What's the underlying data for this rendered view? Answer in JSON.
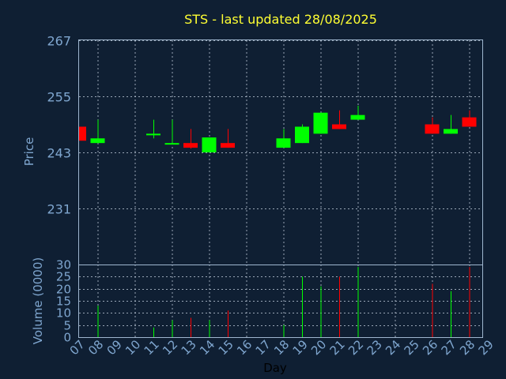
{
  "chart_data": {
    "type": "candlestick",
    "title": "STS - last updated 28/08/2025",
    "xlabel": "Day",
    "price_panel": {
      "ylabel": "Price",
      "ylim": [
        219,
        267
      ],
      "yticks": [
        231,
        243,
        255,
        267
      ],
      "grid": true
    },
    "volume_panel": {
      "ylabel": "Volume (0000)",
      "ylim": [
        0,
        30
      ],
      "yticks": [
        0,
        5,
        10,
        15,
        20,
        25,
        30
      ],
      "grid": true
    },
    "day_ticks": [
      "07",
      "08",
      "09",
      "10",
      "11",
      "12",
      "13",
      "14",
      "15",
      "16",
      "17",
      "18",
      "19",
      "20",
      "21",
      "22",
      "23",
      "24",
      "25",
      "26",
      "27",
      "28",
      "29"
    ],
    "up_color": "#00ff00",
    "down_color": "#ff0000",
    "candles": [
      {
        "day": "07",
        "open": 248.5,
        "high": 248.5,
        "low": 245.5,
        "close": 245.5,
        "volume": 0
      },
      {
        "day": "08",
        "open": 245.0,
        "high": 250.0,
        "low": 245.0,
        "close": 246.0,
        "volume": 13
      },
      {
        "day": "11",
        "open": 246.8,
        "high": 250.0,
        "low": 246.0,
        "close": 247.0,
        "volume": 4
      },
      {
        "day": "12",
        "open": 244.8,
        "high": 250.0,
        "low": 244.8,
        "close": 245.0,
        "volume": 7
      },
      {
        "day": "13",
        "open": 245.0,
        "high": 248.0,
        "low": 243.8,
        "close": 244.0,
        "volume": 8
      },
      {
        "day": "14",
        "open": 243.0,
        "high": 246.2,
        "low": 243.0,
        "close": 246.2,
        "volume": 7
      },
      {
        "day": "15",
        "open": 245.0,
        "high": 248.0,
        "low": 244.0,
        "close": 244.0,
        "volume": 11
      },
      {
        "day": "18",
        "open": 244.0,
        "high": 248.0,
        "low": 244.0,
        "close": 246.0,
        "volume": 5
      },
      {
        "day": "19",
        "open": 245.0,
        "high": 249.0,
        "low": 245.0,
        "close": 248.5,
        "volume": 25
      },
      {
        "day": "20",
        "open": 247.0,
        "high": 251.5,
        "low": 247.0,
        "close": 251.5,
        "volume": 21
      },
      {
        "day": "21",
        "open": 249.0,
        "high": 252.0,
        "low": 248.0,
        "close": 248.0,
        "volume": 25
      },
      {
        "day": "22",
        "open": 250.0,
        "high": 253.0,
        "low": 250.0,
        "close": 251.0,
        "volume": 29
      },
      {
        "day": "26",
        "open": 249.0,
        "high": 250.5,
        "low": 247.0,
        "close": 247.0,
        "volume": 22
      },
      {
        "day": "27",
        "open": 247.0,
        "high": 251.0,
        "low": 247.0,
        "close": 248.0,
        "volume": 19
      },
      {
        "day": "28",
        "open": 250.5,
        "high": 252.0,
        "low": 248.5,
        "close": 248.5,
        "volume": 29
      }
    ]
  }
}
